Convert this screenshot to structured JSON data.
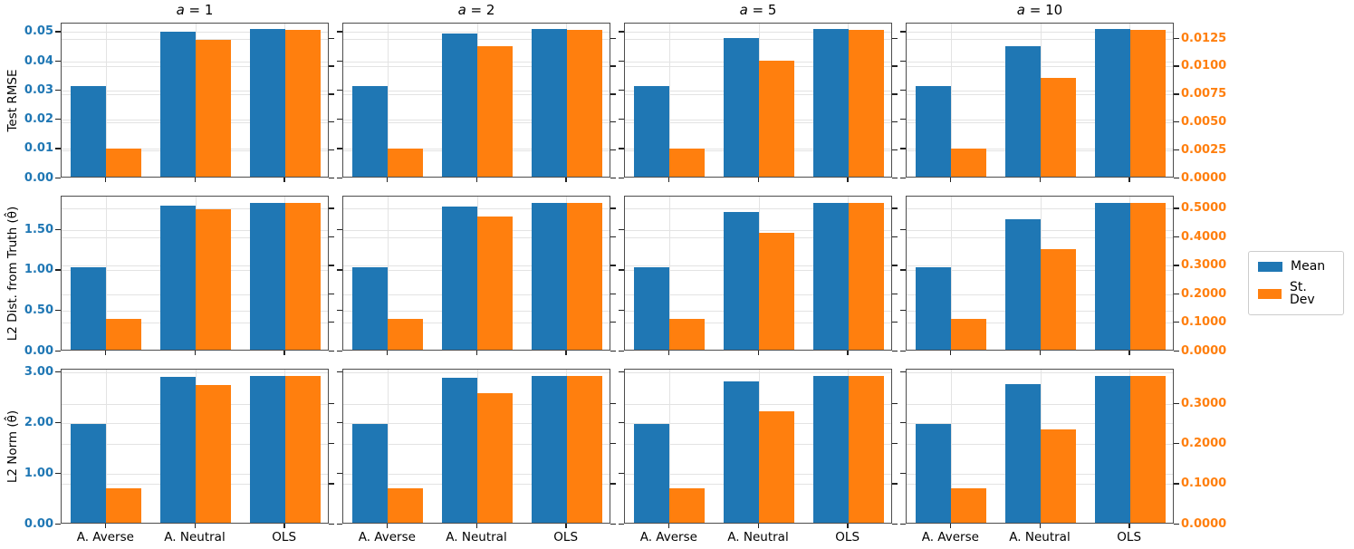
{
  "colors": {
    "mean": "#1f77b4",
    "stdev": "#ff7f0e",
    "grid": "#e3e3e3",
    "spine": "#4d4d4d"
  },
  "legend": {
    "items": [
      {
        "label": "Mean",
        "series": "mean"
      },
      {
        "label": "St. Dev",
        "series": "stdev"
      }
    ]
  },
  "chart_data": {
    "type": "bar",
    "categories": [
      "A. Averse",
      "A. Neutral",
      "OLS"
    ],
    "columns": [
      "a = 1",
      "a = 2",
      "a = 5",
      "a = 10"
    ],
    "series_names": [
      "Mean",
      "St. Dev"
    ],
    "legend_position": "right",
    "grid": true,
    "description": "3x4 grid of grouped bar subplots; blue Mean bars read on left axis, orange St. Dev bars read on right axis; columns share row axes",
    "rows": [
      {
        "ylabel": "Test RMSE",
        "left_tick_labels": [
          "0.00",
          "0.01",
          "0.02",
          "0.03",
          "0.04",
          "0.05"
        ],
        "left_ticks": [
          0,
          0.01,
          0.02,
          0.03,
          0.04,
          0.05
        ],
        "left_max": 0.0531,
        "right_tick_labels": [
          "0.0000",
          "0.0025",
          "0.0050",
          "0.0075",
          "0.0100",
          "0.0125"
        ],
        "right_ticks": [
          0,
          0.0025,
          0.005,
          0.0075,
          0.01,
          0.0125
        ],
        "right_max": 0.0139,
        "mean_by_column": [
          [
            0.031,
            0.0497,
            0.0505
          ],
          [
            0.031,
            0.049,
            0.0505
          ],
          [
            0.031,
            0.0474,
            0.0505
          ],
          [
            0.031,
            0.0448,
            0.0505
          ]
        ],
        "stdev_by_column": [
          [
            0.0025,
            0.0123,
            0.0132
          ],
          [
            0.0025,
            0.0117,
            0.0132
          ],
          [
            0.0025,
            0.0104,
            0.0132
          ],
          [
            0.0025,
            0.0089,
            0.0132
          ]
        ]
      },
      {
        "ylabel": "L2 Dist. from Truth (θ̂)",
        "left_tick_labels": [
          "0.00",
          "0.50",
          "1.00",
          "1.50"
        ],
        "left_ticks": [
          0,
          0.5,
          1.0,
          1.5
        ],
        "left_max": 1.92,
        "right_tick_labels": [
          "0.0000",
          "0.1000",
          "0.2000",
          "0.3000",
          "0.4000",
          "0.5000"
        ],
        "right_ticks": [
          0,
          0.1,
          0.2,
          0.3,
          0.4,
          0.5
        ],
        "right_max": 0.5435,
        "mean_by_column": [
          [
            1.02,
            1.79,
            1.82
          ],
          [
            1.02,
            1.77,
            1.82
          ],
          [
            1.02,
            1.71,
            1.82
          ],
          [
            1.02,
            1.62,
            1.82
          ]
        ],
        "stdev_by_column": [
          [
            0.107,
            0.494,
            0.515
          ],
          [
            0.107,
            0.468,
            0.515
          ],
          [
            0.107,
            0.411,
            0.515
          ],
          [
            0.107,
            0.353,
            0.515
          ]
        ]
      },
      {
        "ylabel": "L2 Norm (θ̂)",
        "left_tick_labels": [
          "0.00",
          "1.00",
          "2.00",
          "3.00"
        ],
        "left_ticks": [
          0,
          1.0,
          2.0,
          3.0
        ],
        "left_max": 3.06,
        "right_tick_labels": [
          "0.0000",
          "0.1000",
          "0.2000",
          "0.3000"
        ],
        "right_ticks": [
          0,
          0.1,
          0.2,
          0.3
        ],
        "right_max": 0.386,
        "mean_by_column": [
          [
            1.95,
            2.88,
            2.9
          ],
          [
            1.95,
            2.86,
            2.9
          ],
          [
            1.95,
            2.79,
            2.9
          ],
          [
            1.95,
            2.73,
            2.9
          ]
        ],
        "stdev_by_column": [
          [
            0.086,
            0.342,
            0.366
          ],
          [
            0.086,
            0.323,
            0.366
          ],
          [
            0.086,
            0.278,
            0.366
          ],
          [
            0.086,
            0.233,
            0.366
          ]
        ]
      }
    ]
  }
}
